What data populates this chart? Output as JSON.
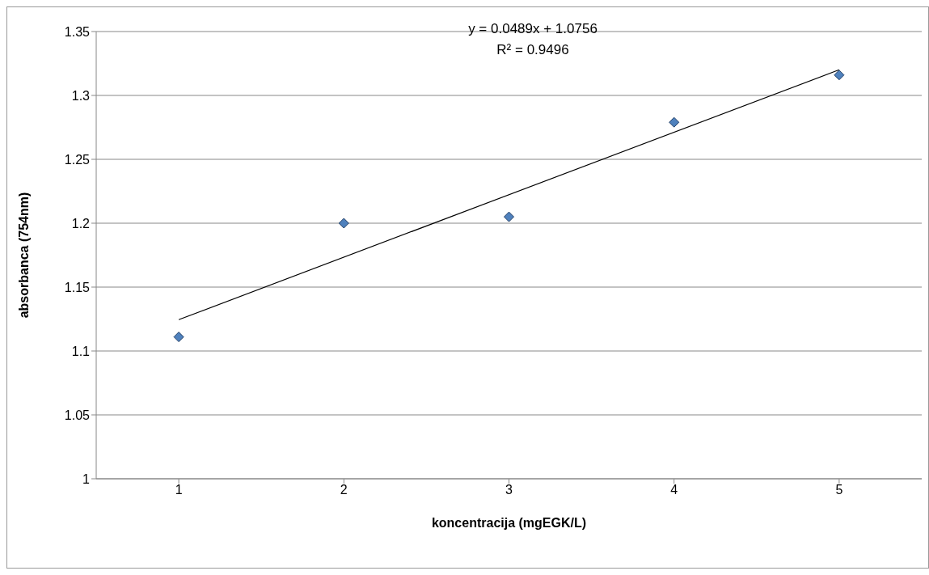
{
  "chart_data": {
    "type": "scatter",
    "xlabel": "koncentracija (mgEGK/L)",
    "ylabel": "absorbanca (754nm)",
    "annotations": [
      "y = 0.0489x + 1.0756",
      "R² = 0.9496"
    ],
    "xlim": [
      0.5,
      5.5
    ],
    "xticks": [
      1,
      2,
      3,
      4,
      5
    ],
    "ylim": [
      1,
      1.35
    ],
    "yticks": [
      1,
      1.05,
      1.1,
      1.15,
      1.2,
      1.25,
      1.3,
      1.35
    ],
    "grid": "y",
    "legend": false,
    "marker": "diamond",
    "series": [
      {
        "color": "#4f81bd",
        "x": [
          1,
          2,
          3,
          4,
          5
        ],
        "values": [
          1.111,
          1.2,
          1.205,
          1.279,
          1.316
        ]
      },
      {
        "type": "line",
        "color": "#000000",
        "x": [
          1,
          5
        ],
        "values": [
          1.1245,
          1.3201
        ],
        "marker": "none"
      }
    ]
  }
}
